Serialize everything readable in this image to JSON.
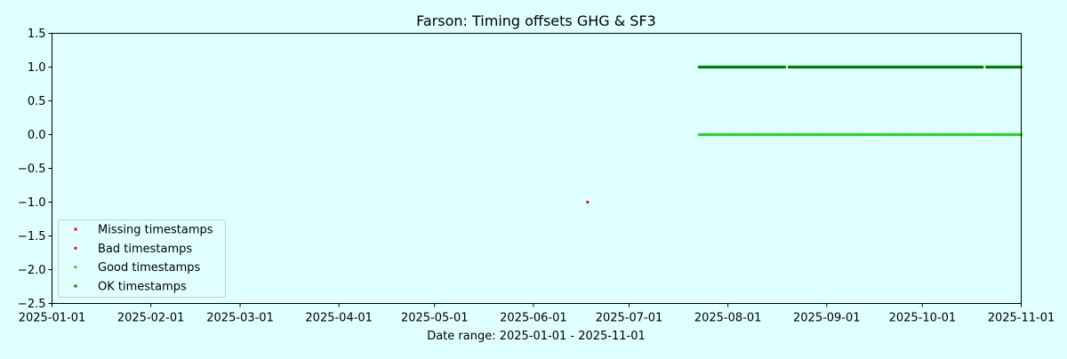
{
  "chart_data": {
    "type": "scatter",
    "title": "Farson: Timing offsets GHG & SF3",
    "xlabel": "Date range: 2025-01-01 - 2025-11-01",
    "ylabel": "",
    "x_axis_type": "date",
    "xlim": [
      "2025-01-01",
      "2025-11-01"
    ],
    "ylim": [
      -2.5,
      1.5
    ],
    "x_ticks": [
      "2025-01-01",
      "2025-02-01",
      "2025-03-01",
      "2025-04-01",
      "2025-05-01",
      "2025-06-01",
      "2025-07-01",
      "2025-08-01",
      "2025-09-01",
      "2025-10-01",
      "2025-11-01"
    ],
    "y_ticks": [
      1.5,
      1.0,
      0.5,
      0.0,
      -0.5,
      -1.0,
      -1.5,
      -2.0,
      -2.5
    ],
    "y_tick_labels": [
      "1.5",
      "1.0",
      "0.5",
      "0.0",
      "−0.5",
      "−1.0",
      "−1.5",
      "−2.0",
      "−2.5"
    ],
    "grid": false,
    "legend_position": "lower-left",
    "plot_background": "#e0ffff",
    "series": [
      {
        "name": "Missing timestamps",
        "color": "#ff0000",
        "points": []
      },
      {
        "name": "Bad timestamps",
        "color": "#b22222",
        "points": [
          {
            "x": "2025-06-18",
            "y": -1.0
          }
        ]
      },
      {
        "name": "Good timestamps",
        "color": "#32cd32",
        "y": 0.0,
        "x_start": "2025-07-23",
        "x_end": "2025-11-01"
      },
      {
        "name": "OK timestamps",
        "color": "#008000",
        "y": 1.0,
        "x_start": "2025-07-23",
        "x_end": "2025-11-01",
        "gaps": [
          [
            "2025-08-19",
            "2025-08-20"
          ],
          [
            "2025-10-20",
            "2025-10-21"
          ]
        ]
      }
    ]
  }
}
